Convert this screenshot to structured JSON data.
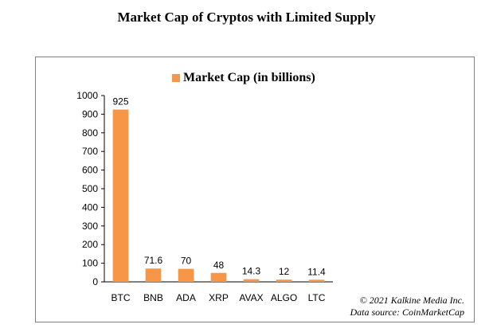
{
  "title": "Market Cap of Cryptos with Limited Supply",
  "credits": {
    "line1": "© 2021 Kalkine Media Inc.",
    "line2": "Data source: CoinMarketCap"
  },
  "chart_data": {
    "type": "bar",
    "title": "Market Cap of Cryptos with Limited Supply",
    "categories": [
      "BTC",
      "BNB",
      "ADA",
      "XRP",
      "AVAX",
      "ALGO",
      "LTC"
    ],
    "series": [
      {
        "name": "Market Cap (in billions)",
        "values": [
          925,
          71.6,
          70,
          48,
          14.3,
          12,
          11.4
        ],
        "labels": [
          "925",
          "71.6",
          "70",
          "48",
          "14.3",
          "12",
          "11.4"
        ],
        "color": "#f79646"
      }
    ],
    "xlabel": "",
    "ylabel": "",
    "ylim": [
      0,
      1000
    ],
    "yticks": [
      0,
      100,
      200,
      300,
      400,
      500,
      600,
      700,
      800,
      900,
      1000
    ],
    "grid": false,
    "legend": "top-center"
  }
}
